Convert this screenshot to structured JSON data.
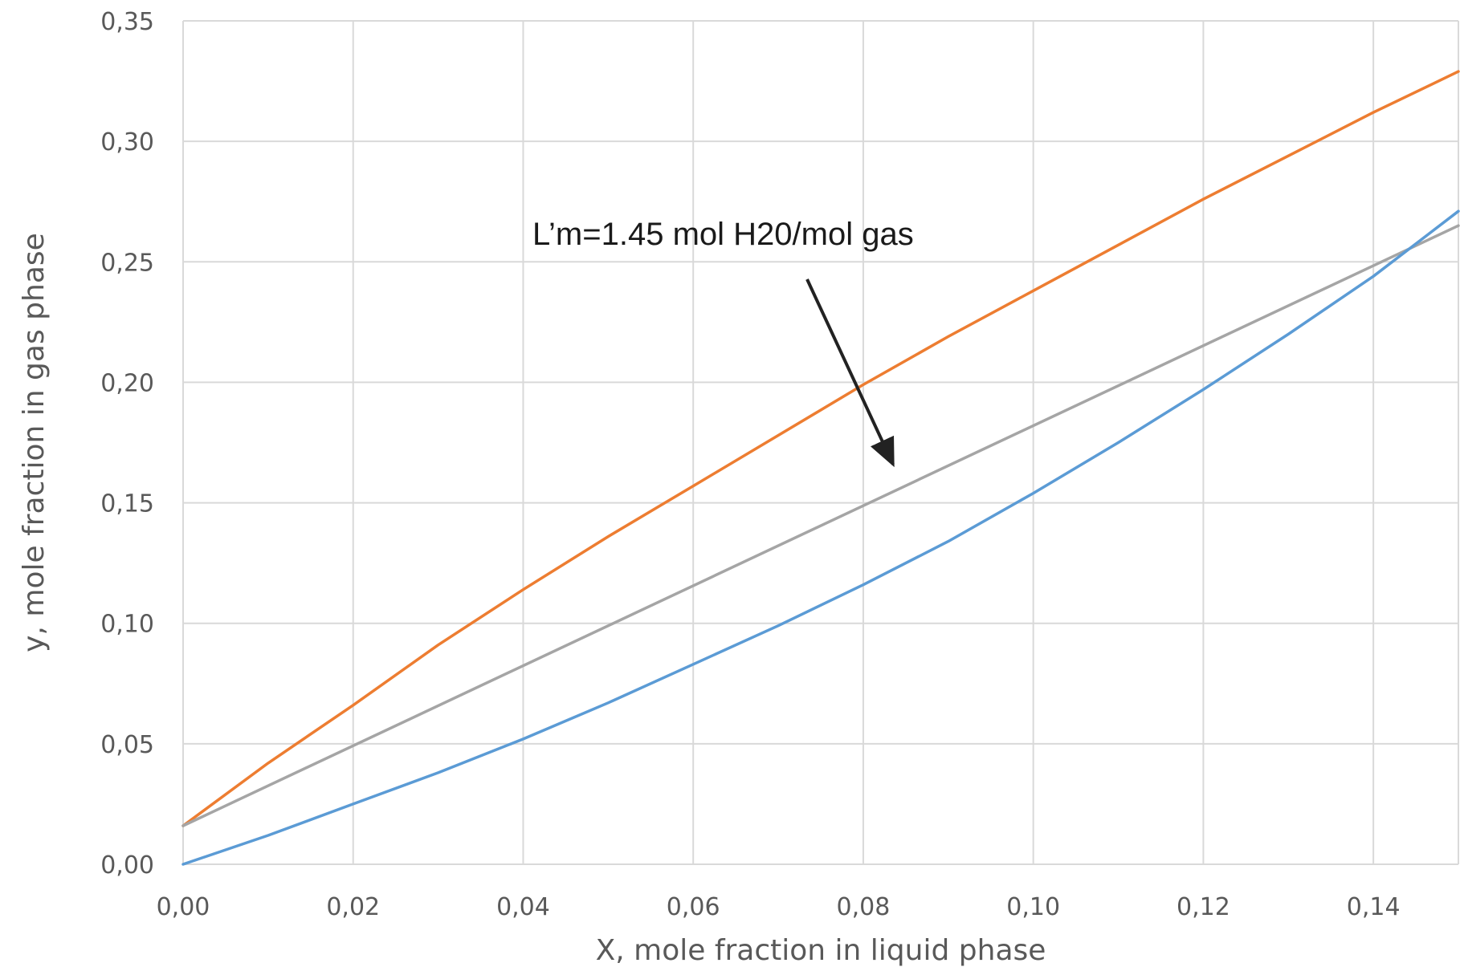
{
  "chart_data": {
    "type": "line",
    "title": "",
    "xlabel": "X, mole fraction in liquid phase",
    "ylabel": "y, mole fraction in gas phase",
    "xlim": [
      0,
      0.15
    ],
    "ylim": [
      0,
      0.35
    ],
    "x_ticks": [
      "0,00",
      "0,02",
      "0,04",
      "0,06",
      "0,08",
      "0,10",
      "0,12",
      "0,14"
    ],
    "y_ticks": [
      "0,00",
      "0,05",
      "0,10",
      "0,15",
      "0,20",
      "0,25",
      "0,30",
      "0,35"
    ],
    "grid": true,
    "legend": "none",
    "colors": {
      "orange": "#ED7D31",
      "gray": "#A5A5A5",
      "blue": "#5B9BD5",
      "grid": "#D9D9D9",
      "arrow": "#222222"
    },
    "series": [
      {
        "color": "#ED7D31",
        "x": [
          0,
          0.01,
          0.02,
          0.03,
          0.04,
          0.05,
          0.06,
          0.07,
          0.08,
          0.09,
          0.1,
          0.11,
          0.12,
          0.13,
          0.14,
          0.15
        ],
        "y": [
          0.016,
          0.042,
          0.066,
          0.091,
          0.114,
          0.136,
          0.157,
          0.178,
          0.199,
          0.219,
          0.238,
          0.257,
          0.276,
          0.294,
          0.312,
          0.329
        ]
      },
      {
        "color": "#A5A5A5",
        "x": [
          0,
          0.15
        ],
        "y": [
          0.016,
          0.265
        ]
      },
      {
        "color": "#5B9BD5",
        "x": [
          0,
          0.01,
          0.02,
          0.03,
          0.04,
          0.05,
          0.06,
          0.07,
          0.08,
          0.09,
          0.1,
          0.11,
          0.12,
          0.13,
          0.14,
          0.15
        ],
        "y": [
          0,
          0.012,
          0.025,
          0.038,
          0.052,
          0.067,
          0.083,
          0.099,
          0.116,
          0.134,
          0.154,
          0.175,
          0.197,
          0.22,
          0.244,
          0.271
        ]
      }
    ],
    "annotations": [
      {
        "text": "L’m=1.45 mol H20/mol gas",
        "arrow_to": {
          "x": 0.0835,
          "y": 0.166
        }
      }
    ]
  }
}
